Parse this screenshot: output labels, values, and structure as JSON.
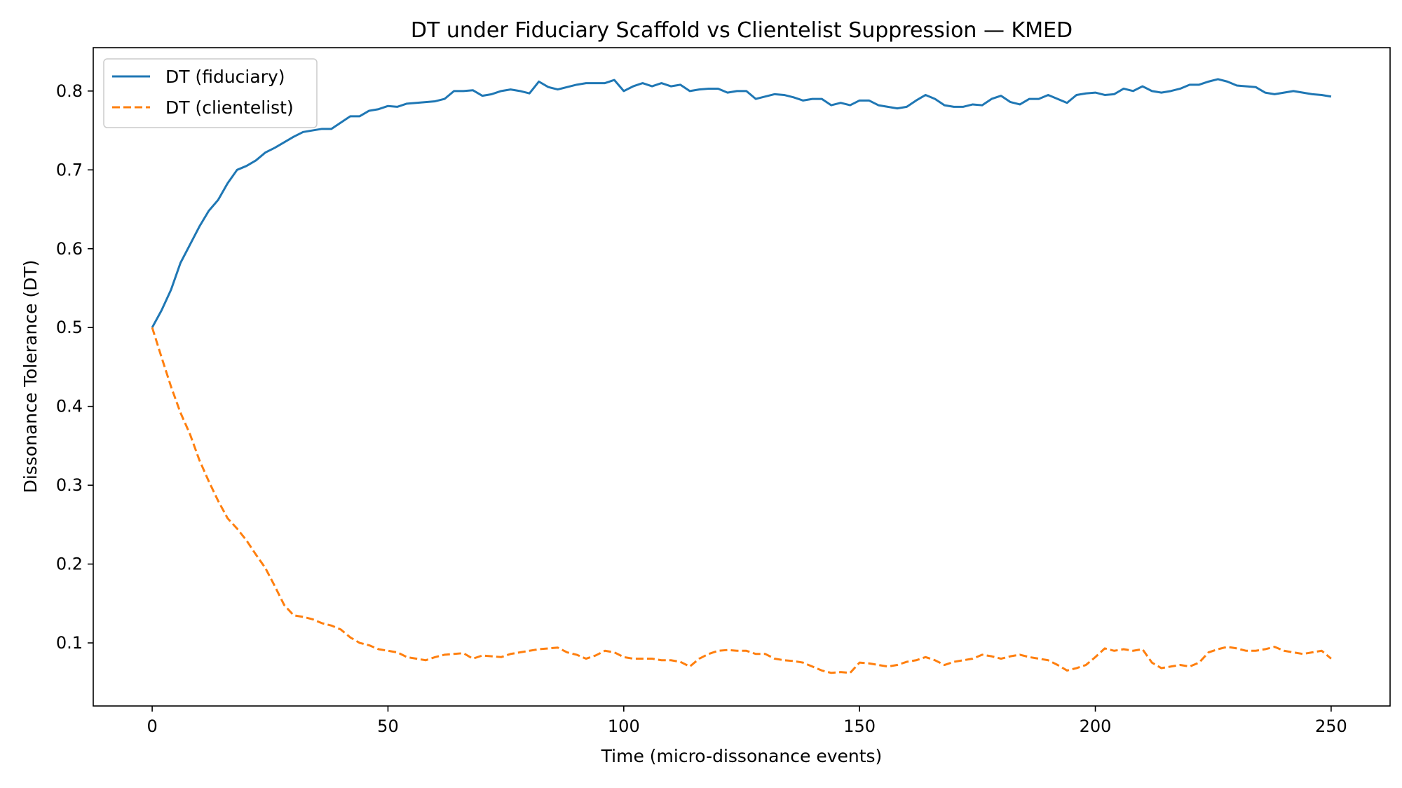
{
  "chart_data": {
    "type": "line",
    "title": "DT under Fiduciary Scaffold vs Clientelist Suppression — KMED",
    "xlabel": "Time (micro-dissonance events)",
    "ylabel": "Dissonance Tolerance (DT)",
    "xlim": [
      -12.5,
      262.5
    ],
    "ylim": [
      0.02,
      0.855
    ],
    "xticks": [
      0,
      50,
      100,
      150,
      200,
      250
    ],
    "xtick_labels": [
      "0",
      "50",
      "100",
      "150",
      "200",
      "250"
    ],
    "yticks": [
      0.1,
      0.2,
      0.3,
      0.4,
      0.5,
      0.6,
      0.7,
      0.8
    ],
    "ytick_labels": [
      "0.1",
      "0.2",
      "0.3",
      "0.4",
      "0.5",
      "0.6",
      "0.7",
      "0.8"
    ],
    "grid": false,
    "legend_position": "top-left",
    "series": [
      {
        "name": "DT (fiduciary)",
        "color": "#1f77b4",
        "style": "solid",
        "x": [
          0,
          2,
          4,
          6,
          8,
          10,
          12,
          14,
          16,
          18,
          20,
          22,
          24,
          26,
          28,
          30,
          32,
          34,
          36,
          38,
          40,
          42,
          44,
          46,
          48,
          50,
          52,
          54,
          56,
          58,
          60,
          62,
          64,
          66,
          68,
          70,
          72,
          74,
          76,
          78,
          80,
          82,
          84,
          86,
          88,
          90,
          92,
          94,
          96,
          98,
          100,
          102,
          104,
          106,
          108,
          110,
          112,
          114,
          116,
          118,
          120,
          122,
          124,
          126,
          128,
          130,
          132,
          134,
          136,
          138,
          140,
          142,
          144,
          146,
          148,
          150,
          152,
          154,
          156,
          158,
          160,
          162,
          164,
          166,
          168,
          170,
          172,
          174,
          176,
          178,
          180,
          182,
          184,
          186,
          188,
          190,
          192,
          194,
          196,
          198,
          200,
          202,
          204,
          206,
          208,
          210,
          212,
          214,
          216,
          218,
          220,
          222,
          224,
          226,
          228,
          230,
          232,
          234,
          236,
          238,
          240,
          242,
          244,
          246,
          248,
          250
        ],
        "values": [
          0.5,
          0.522,
          0.548,
          0.582,
          0.605,
          0.628,
          0.648,
          0.662,
          0.683,
          0.7,
          0.705,
          0.712,
          0.722,
          0.728,
          0.735,
          0.742,
          0.748,
          0.75,
          0.752,
          0.752,
          0.76,
          0.768,
          0.768,
          0.775,
          0.777,
          0.781,
          0.78,
          0.784,
          0.785,
          0.786,
          0.787,
          0.79,
          0.8,
          0.8,
          0.801,
          0.794,
          0.796,
          0.8,
          0.802,
          0.8,
          0.797,
          0.812,
          0.805,
          0.802,
          0.805,
          0.808,
          0.81,
          0.81,
          0.81,
          0.814,
          0.8,
          0.806,
          0.81,
          0.806,
          0.81,
          0.806,
          0.808,
          0.8,
          0.802,
          0.803,
          0.803,
          0.798,
          0.8,
          0.8,
          0.79,
          0.793,
          0.796,
          0.795,
          0.792,
          0.788,
          0.79,
          0.79,
          0.782,
          0.785,
          0.782,
          0.788,
          0.788,
          0.782,
          0.78,
          0.778,
          0.78,
          0.788,
          0.795,
          0.79,
          0.782,
          0.78,
          0.78,
          0.783,
          0.782,
          0.79,
          0.794,
          0.786,
          0.783,
          0.79,
          0.79,
          0.795,
          0.79,
          0.785,
          0.795,
          0.797,
          0.798,
          0.795,
          0.796,
          0.803,
          0.8,
          0.806,
          0.8,
          0.798,
          0.8,
          0.803,
          0.808,
          0.808,
          0.812,
          0.815,
          0.812,
          0.807,
          0.806,
          0.805,
          0.798,
          0.796,
          0.798,
          0.8,
          0.798,
          0.796,
          0.795,
          0.793
        ]
      },
      {
        "name": "DT (clientelist)",
        "color": "#ff7f0e",
        "style": "dashed",
        "x": [
          0,
          2,
          4,
          6,
          8,
          10,
          12,
          14,
          16,
          18,
          20,
          22,
          24,
          26,
          28,
          30,
          32,
          34,
          36,
          38,
          40,
          42,
          44,
          46,
          48,
          50,
          52,
          54,
          56,
          58,
          60,
          62,
          64,
          66,
          68,
          70,
          72,
          74,
          76,
          78,
          80,
          82,
          84,
          86,
          88,
          90,
          92,
          94,
          96,
          98,
          100,
          102,
          104,
          106,
          108,
          110,
          112,
          114,
          116,
          118,
          120,
          122,
          124,
          126,
          128,
          130,
          132,
          134,
          136,
          138,
          140,
          142,
          144,
          146,
          148,
          150,
          152,
          154,
          156,
          158,
          160,
          162,
          164,
          166,
          168,
          170,
          172,
          174,
          176,
          178,
          180,
          182,
          184,
          186,
          188,
          190,
          192,
          194,
          196,
          198,
          200,
          202,
          204,
          206,
          208,
          210,
          212,
          214,
          216,
          218,
          220,
          222,
          224,
          226,
          228,
          230,
          232,
          234,
          236,
          238,
          240,
          242,
          244,
          246,
          248,
          250
        ],
        "values": [
          0.5,
          0.462,
          0.425,
          0.392,
          0.365,
          0.332,
          0.305,
          0.28,
          0.258,
          0.245,
          0.23,
          0.212,
          0.195,
          0.172,
          0.148,
          0.135,
          0.133,
          0.13,
          0.125,
          0.122,
          0.117,
          0.107,
          0.1,
          0.097,
          0.092,
          0.09,
          0.088,
          0.082,
          0.08,
          0.078,
          0.082,
          0.085,
          0.086,
          0.087,
          0.08,
          0.084,
          0.083,
          0.082,
          0.086,
          0.088,
          0.09,
          0.092,
          0.093,
          0.094,
          0.088,
          0.085,
          0.08,
          0.084,
          0.09,
          0.088,
          0.082,
          0.08,
          0.08,
          0.08,
          0.078,
          0.078,
          0.076,
          0.07,
          0.08,
          0.086,
          0.09,
          0.091,
          0.09,
          0.09,
          0.086,
          0.086,
          0.08,
          0.078,
          0.077,
          0.075,
          0.07,
          0.065,
          0.062,
          0.063,
          0.062,
          0.075,
          0.074,
          0.072,
          0.07,
          0.072,
          0.076,
          0.078,
          0.082,
          0.078,
          0.072,
          0.076,
          0.078,
          0.08,
          0.085,
          0.083,
          0.08,
          0.083,
          0.085,
          0.082,
          0.08,
          0.078,
          0.072,
          0.065,
          0.068,
          0.072,
          0.082,
          0.093,
          0.09,
          0.092,
          0.09,
          0.092,
          0.075,
          0.068,
          0.07,
          0.072,
          0.07,
          0.075,
          0.088,
          0.092,
          0.095,
          0.093,
          0.09,
          0.09,
          0.092,
          0.095,
          0.09,
          0.088,
          0.086,
          0.088,
          0.09,
          0.08
        ]
      }
    ]
  }
}
